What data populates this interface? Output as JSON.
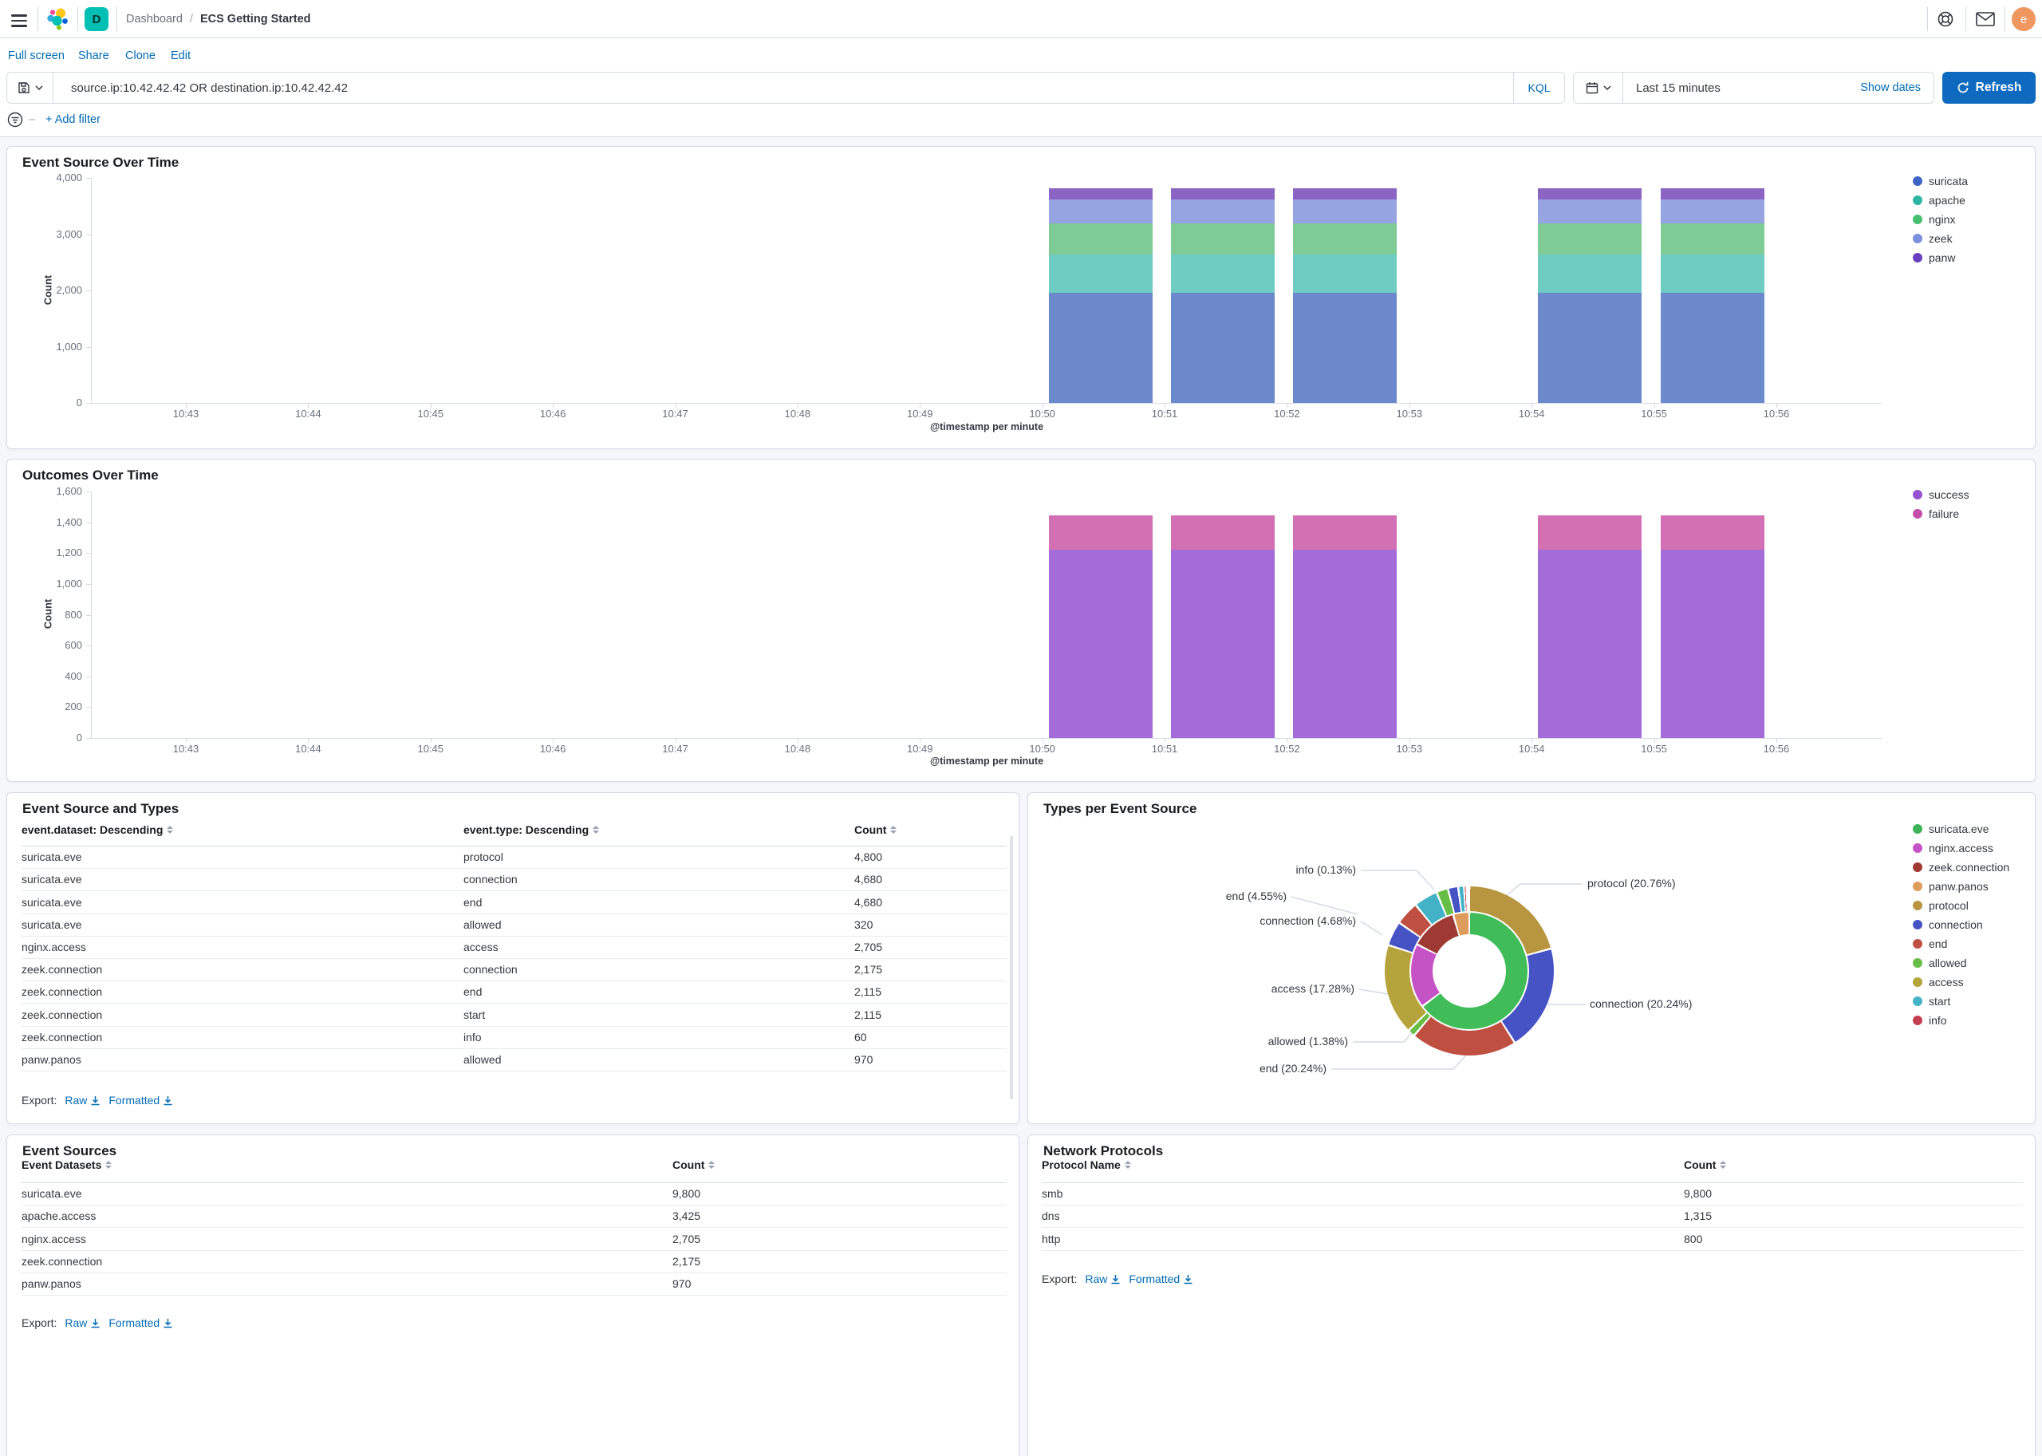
{
  "navbar": {
    "breadcrumb_section": "Dashboard",
    "breadcrumb_separator": "/",
    "breadcrumb_page": "ECS Getting Started",
    "space_initial": "D",
    "user_initial": "e",
    "icons": [
      "menu-icon",
      "elastic-logo",
      "help-icon",
      "mail-icon",
      "avatar"
    ]
  },
  "actions": {
    "full_screen": "Full screen",
    "share": "Share",
    "clone": "Clone",
    "edit": "Edit"
  },
  "query_bar": {
    "query": "source.ip:10.42.42.42 OR destination.ip:10.42.42.42",
    "language": "KQL",
    "time_range": "Last 15 minutes",
    "show_dates": "Show dates",
    "refresh": "Refresh"
  },
  "filter_bar": {
    "add_filter": "+ Add filter"
  },
  "export": {
    "label": "Export:",
    "raw": "Raw",
    "formatted": "Formatted"
  },
  "colors": {
    "link": "#006BB4",
    "primary_button": "#0D6ABF",
    "border": "#D3DAE6",
    "text": "#343741",
    "subdued": "#69707D",
    "page_bg": "#F5F7FB",
    "space_avatar": "#00BFB3",
    "user_avatar": "#F0965F"
  },
  "chart_data": [
    {
      "type": "bar",
      "title": "Event Source Over Time",
      "ylabel": "Count",
      "xlabel": "@timestamp per minute",
      "ylim": [
        0,
        4000
      ],
      "y_ticks": [
        {
          "v": 4000,
          "label": "4,000"
        },
        {
          "v": 3000,
          "label": "3,000"
        },
        {
          "v": 2000,
          "label": "2,000"
        },
        {
          "v": 1000,
          "label": "1,000"
        },
        {
          "v": 0,
          "label": "0"
        }
      ],
      "categories": [
        "10:43",
        "10:44",
        "10:45",
        "10:46",
        "10:47",
        "10:48",
        "10:49",
        "10:50",
        "10:51",
        "10:52",
        "10:53",
        "10:54",
        "10:55",
        "10:56"
      ],
      "bars_present_at": [
        "10:50",
        "10:51",
        "10:52",
        "10:54",
        "10:55"
      ],
      "stacked": true,
      "legend_position": "right",
      "series": [
        {
          "name": "suricata",
          "per_minute_value": 1960,
          "bar_color": "#6C89CB",
          "legend_color": "#3F63C6"
        },
        {
          "name": "apache",
          "per_minute_value": 685,
          "bar_color": "#6FCCC3",
          "legend_color": "#2BB5A2"
        },
        {
          "name": "nginx",
          "per_minute_value": 541,
          "bar_color": "#7FCB96",
          "legend_color": "#47BE6E"
        },
        {
          "name": "zeek",
          "per_minute_value": 435,
          "bar_color": "#96A5E2",
          "legend_color": "#7B8FDC"
        },
        {
          "name": "panw",
          "per_minute_value": 194,
          "bar_color": "#8B64C4",
          "legend_color": "#6B40BF"
        }
      ]
    },
    {
      "type": "bar",
      "title": "Outcomes Over Time",
      "ylabel": "Count",
      "xlabel": "@timestamp per minute",
      "ylim": [
        0,
        1600
      ],
      "y_ticks": [
        {
          "v": 1600,
          "label": "1,600"
        },
        {
          "v": 1400,
          "label": "1,400"
        },
        {
          "v": 1200,
          "label": "1,200"
        },
        {
          "v": 1000,
          "label": "1,000"
        },
        {
          "v": 800,
          "label": "800"
        },
        {
          "v": 600,
          "label": "600"
        },
        {
          "v": 400,
          "label": "400"
        },
        {
          "v": 200,
          "label": "200"
        },
        {
          "v": 0,
          "label": "0"
        }
      ],
      "categories": [
        "10:43",
        "10:44",
        "10:45",
        "10:46",
        "10:47",
        "10:48",
        "10:49",
        "10:50",
        "10:51",
        "10:52",
        "10:53",
        "10:54",
        "10:55",
        "10:56"
      ],
      "bars_present_at": [
        "10:50",
        "10:51",
        "10:52",
        "10:54",
        "10:55"
      ],
      "stacked": true,
      "legend_position": "right",
      "series": [
        {
          "name": "success",
          "per_minute_value": 1220,
          "bar_color": "#A46CD9",
          "legend_color": "#9553D1"
        },
        {
          "name": "failure",
          "per_minute_value": 225,
          "bar_color": "#D36FB3",
          "legend_color": "#C44EA8"
        }
      ]
    },
    {
      "type": "pie",
      "subtype": "sunburst-donut",
      "title": "Types per Event Source",
      "legend": [
        {
          "name": "suricata.eve",
          "color": "#3CB457"
        },
        {
          "name": "nginx.access",
          "color": "#C653C6"
        },
        {
          "name": "zeek.connection",
          "color": "#9E3A33"
        },
        {
          "name": "panw.panos",
          "color": "#DE9C5C"
        },
        {
          "name": "protocol",
          "color": "#B8953F"
        },
        {
          "name": "connection",
          "color": "#4653C5"
        },
        {
          "name": "end",
          "color": "#BF4F41"
        },
        {
          "name": "allowed",
          "color": "#67BE46"
        },
        {
          "name": "access",
          "color": "#B5A43C"
        },
        {
          "name": "start",
          "color": "#44B2C6"
        },
        {
          "name": "info",
          "color": "#C43D4F"
        }
      ],
      "inner_ring_datasets_deg": [
        {
          "name": "suricata.eve",
          "deg": 233,
          "color": "#40BC58"
        },
        {
          "name": "nginx.access",
          "deg": 64,
          "color": "#C653C6"
        },
        {
          "name": "zeek.connection",
          "deg": 47,
          "color": "#9E3A33"
        },
        {
          "name": "panw.panos",
          "deg": 16,
          "color": "#DE9C5C"
        }
      ],
      "outer_ring_types_deg": [
        {
          "name": "protocol",
          "deg": 74.7,
          "color": "#B8953F"
        },
        {
          "name": "connection",
          "deg": 72.9,
          "color": "#4653C5"
        },
        {
          "name": "end",
          "deg": 72.9,
          "color": "#BF4F41"
        },
        {
          "name": "allowed",
          "deg": 5.0,
          "color": "#67BE46"
        },
        {
          "name": "access",
          "deg": 62.2,
          "color": "#B5A43C"
        },
        {
          "name": "connection",
          "deg": 16.8,
          "color": "#4653C5"
        },
        {
          "name": "end",
          "deg": 16.4,
          "color": "#BF4F41"
        },
        {
          "name": "start",
          "deg": 16.5,
          "color": "#44B2C6"
        },
        {
          "name": "allowed",
          "deg": 8.0,
          "color": "#67BE46"
        },
        {
          "name": "connection",
          "deg": 7.0,
          "color": "#4653C5"
        },
        {
          "name": "start",
          "deg": 4.0,
          "color": "#44B2C6"
        },
        {
          "name": "info",
          "deg": 1.6,
          "color": "#C43D4F"
        },
        {
          "name": "_gap",
          "deg": 2.0,
          "color": "#FFFFFF"
        }
      ],
      "callout_labels": [
        "info (0.13%)",
        "end (4.55%)",
        "connection (4.68%)",
        "access (17.28%)",
        "allowed (1.38%)",
        "end (20.24%)",
        "protocol (20.76%)",
        "connection (20.24%)"
      ]
    }
  ],
  "panels": {
    "event_source_over_time": {
      "title": "Event Source Over Time"
    },
    "outcomes_over_time": {
      "title": "Outcomes Over Time"
    },
    "event_source_and_types": {
      "title": "Event Source and Types",
      "columns": [
        "event.dataset: Descending",
        "event.type: Descending",
        "Count"
      ],
      "rows": [
        [
          "suricata.eve",
          "protocol",
          "4,800"
        ],
        [
          "suricata.eve",
          "connection",
          "4,680"
        ],
        [
          "suricata.eve",
          "end",
          "4,680"
        ],
        [
          "suricata.eve",
          "allowed",
          "320"
        ],
        [
          "nginx.access",
          "access",
          "2,705"
        ],
        [
          "zeek.connection",
          "connection",
          "2,175"
        ],
        [
          "zeek.connection",
          "end",
          "2,115"
        ],
        [
          "zeek.connection",
          "start",
          "2,115"
        ],
        [
          "zeek.connection",
          "info",
          "60"
        ],
        [
          "panw.panos",
          "allowed",
          "970"
        ]
      ]
    },
    "types_per_event_source": {
      "title": "Types per Event Source"
    },
    "event_sources": {
      "title": "Event Sources",
      "columns": [
        "Event Datasets",
        "Count"
      ],
      "rows": [
        [
          "suricata.eve",
          "9,800"
        ],
        [
          "apache.access",
          "3,425"
        ],
        [
          "nginx.access",
          "2,705"
        ],
        [
          "zeek.connection",
          "2,175"
        ],
        [
          "panw.panos",
          "970"
        ]
      ]
    },
    "network_protocols": {
      "title": "Network Protocols",
      "columns": [
        "Protocol Name",
        "Count"
      ],
      "rows": [
        [
          "smb",
          "9,800"
        ],
        [
          "dns",
          "1,315"
        ],
        [
          "http",
          "800"
        ]
      ]
    }
  }
}
